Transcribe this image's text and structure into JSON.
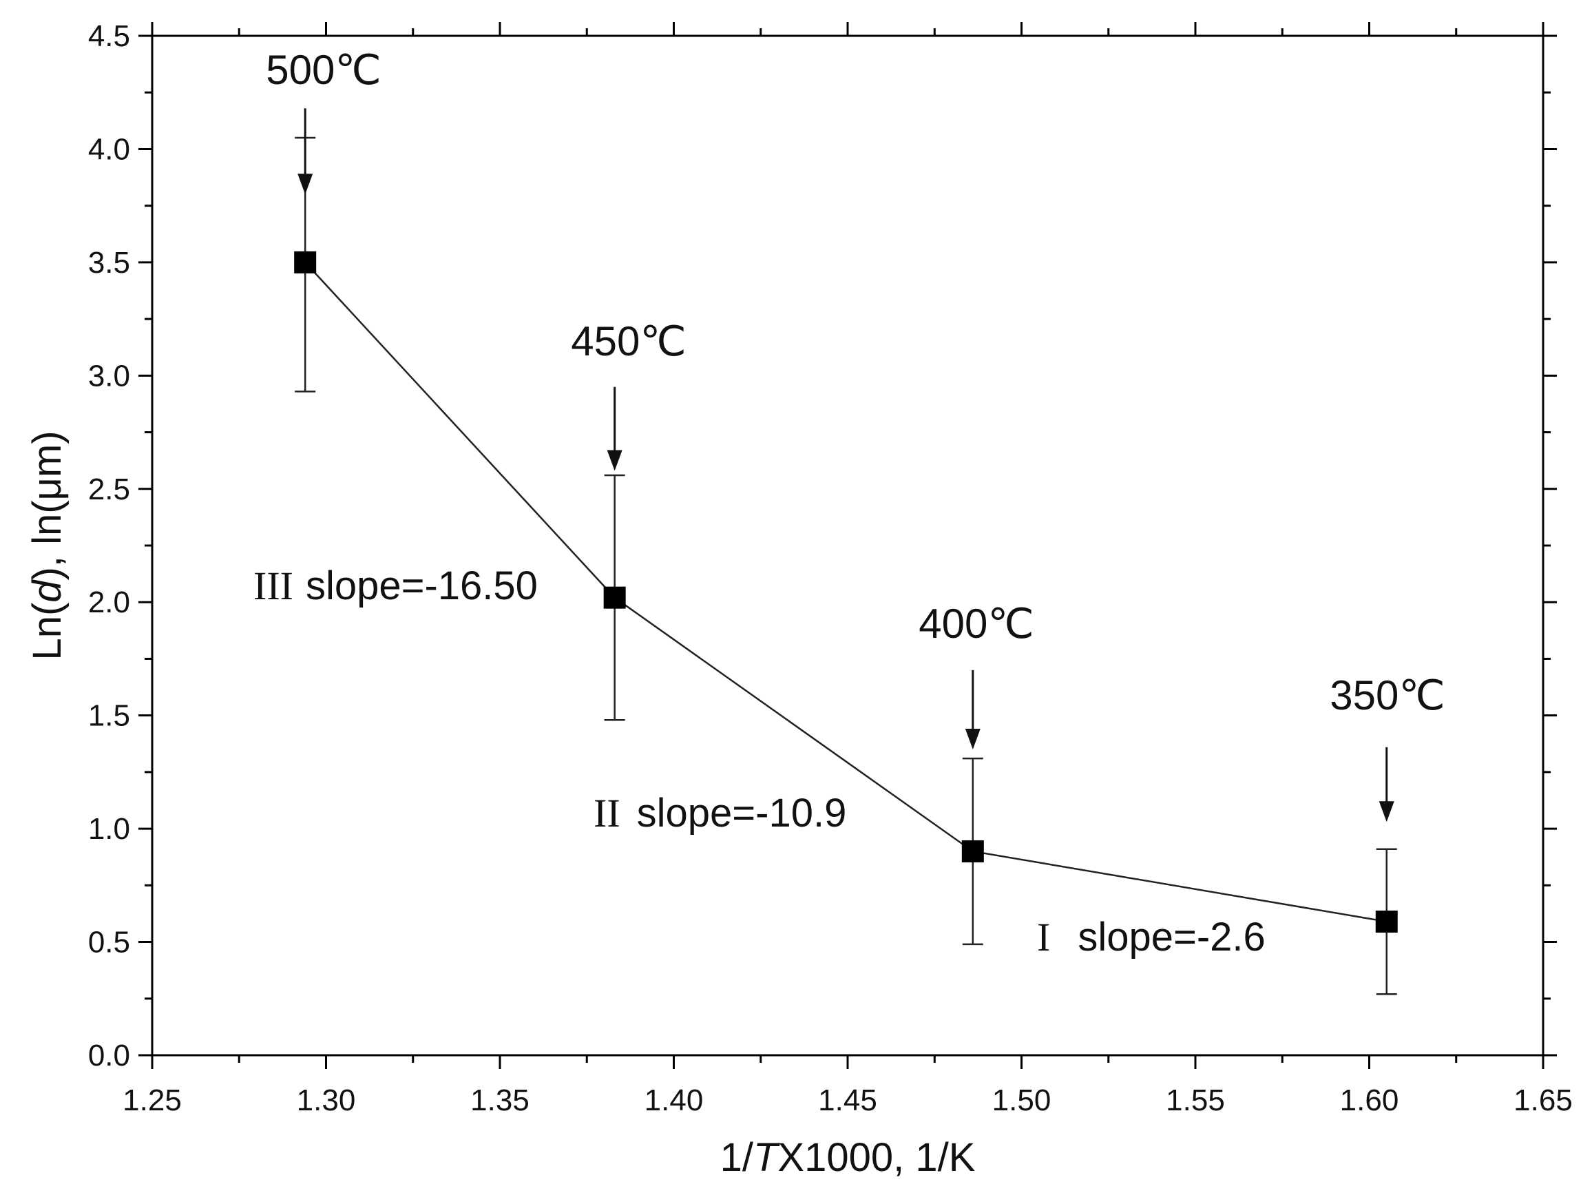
{
  "chart_data": {
    "type": "line",
    "xlabel": "1/TX1000,  1/K",
    "xlabel_parts": {
      "pre": "1/",
      "italic": "T",
      "post": "X1000,  1/K"
    },
    "ylabel": "Ln(d), ln(μm)",
    "ylabel_parts": {
      "pre": "Ln(",
      "italic": "d",
      "post": "), ln(μm)"
    },
    "xlim": [
      1.25,
      1.65
    ],
    "ylim": [
      0.0,
      4.5
    ],
    "x_ticks": [
      "1.25",
      "1.30",
      "1.35",
      "1.40",
      "1.45",
      "1.50",
      "1.55",
      "1.60",
      "1.65"
    ],
    "y_ticks": [
      "0.0",
      "0.5",
      "1.0",
      "1.5",
      "2.0",
      "2.5",
      "3.0",
      "3.5",
      "4.0",
      "4.5"
    ],
    "grid": false,
    "series": [
      {
        "marker": "square",
        "color": "#000000",
        "x": [
          1.294,
          1.383,
          1.486,
          1.605
        ],
        "y": [
          3.5,
          2.02,
          0.9,
          0.59
        ],
        "err_low": [
          2.93,
          1.48,
          0.49,
          0.27
        ],
        "err_high": [
          4.05,
          2.56,
          1.31,
          0.91
        ]
      }
    ],
    "annotations": {
      "temperatures": [
        {
          "label": "500℃",
          "x": 1.294,
          "arrow_top": 4.18,
          "arrow_tip": 3.8
        },
        {
          "label": "450℃",
          "x": 1.383,
          "arrow_top": 2.95,
          "arrow_tip": 2.58
        },
        {
          "label": "400℃",
          "x": 1.486,
          "arrow_top": 1.7,
          "arrow_tip": 1.35
        },
        {
          "label": "350℃",
          "x": 1.605,
          "arrow_top": 1.36,
          "arrow_tip": 1.03
        }
      ],
      "slopes": [
        {
          "roman": "III",
          "text": "slope=-16.50"
        },
        {
          "roman": "II",
          "text": "slope=-10.9"
        },
        {
          "roman": "I",
          "text": "slope=-2.6"
        }
      ]
    }
  }
}
